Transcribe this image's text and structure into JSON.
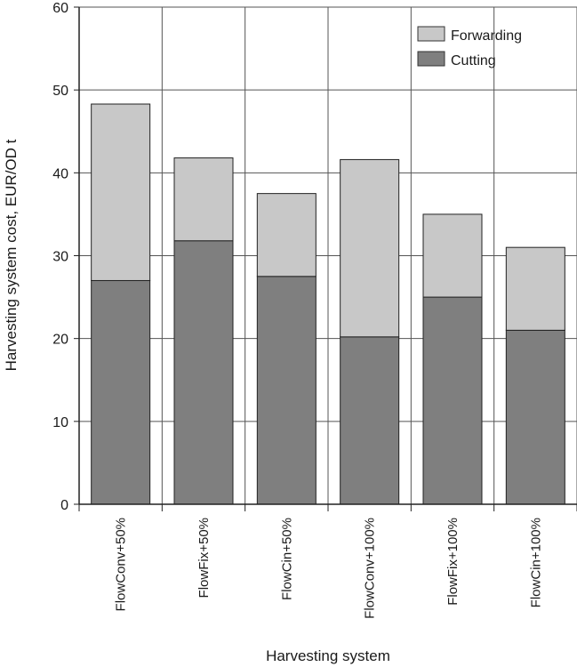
{
  "chart_data": {
    "type": "bar",
    "stacked": true,
    "categories": [
      "FlowConv+50%",
      "FlowFix+50%",
      "FlowCin+50%",
      "FlowConv+100%",
      "FlowFix+100%",
      "FlowCin+100%"
    ],
    "series": [
      {
        "name": "Cutting",
        "values": [
          27.0,
          31.8,
          27.5,
          20.2,
          25.0,
          21.0
        ],
        "color": "#7f7f7f"
      },
      {
        "name": "Forwarding",
        "values": [
          21.3,
          10.0,
          10.0,
          21.4,
          10.0,
          10.0
        ],
        "color": "#c8c8c8"
      }
    ],
    "xlabel": "Harvesting system",
    "ylabel": "Harvesting system cost, EUR/OD t",
    "ylim": [
      0,
      60
    ],
    "yticks": [
      "0",
      "10",
      "20",
      "30",
      "40",
      "50",
      "60"
    ],
    "grid": true,
    "legend_position": "top-right"
  }
}
